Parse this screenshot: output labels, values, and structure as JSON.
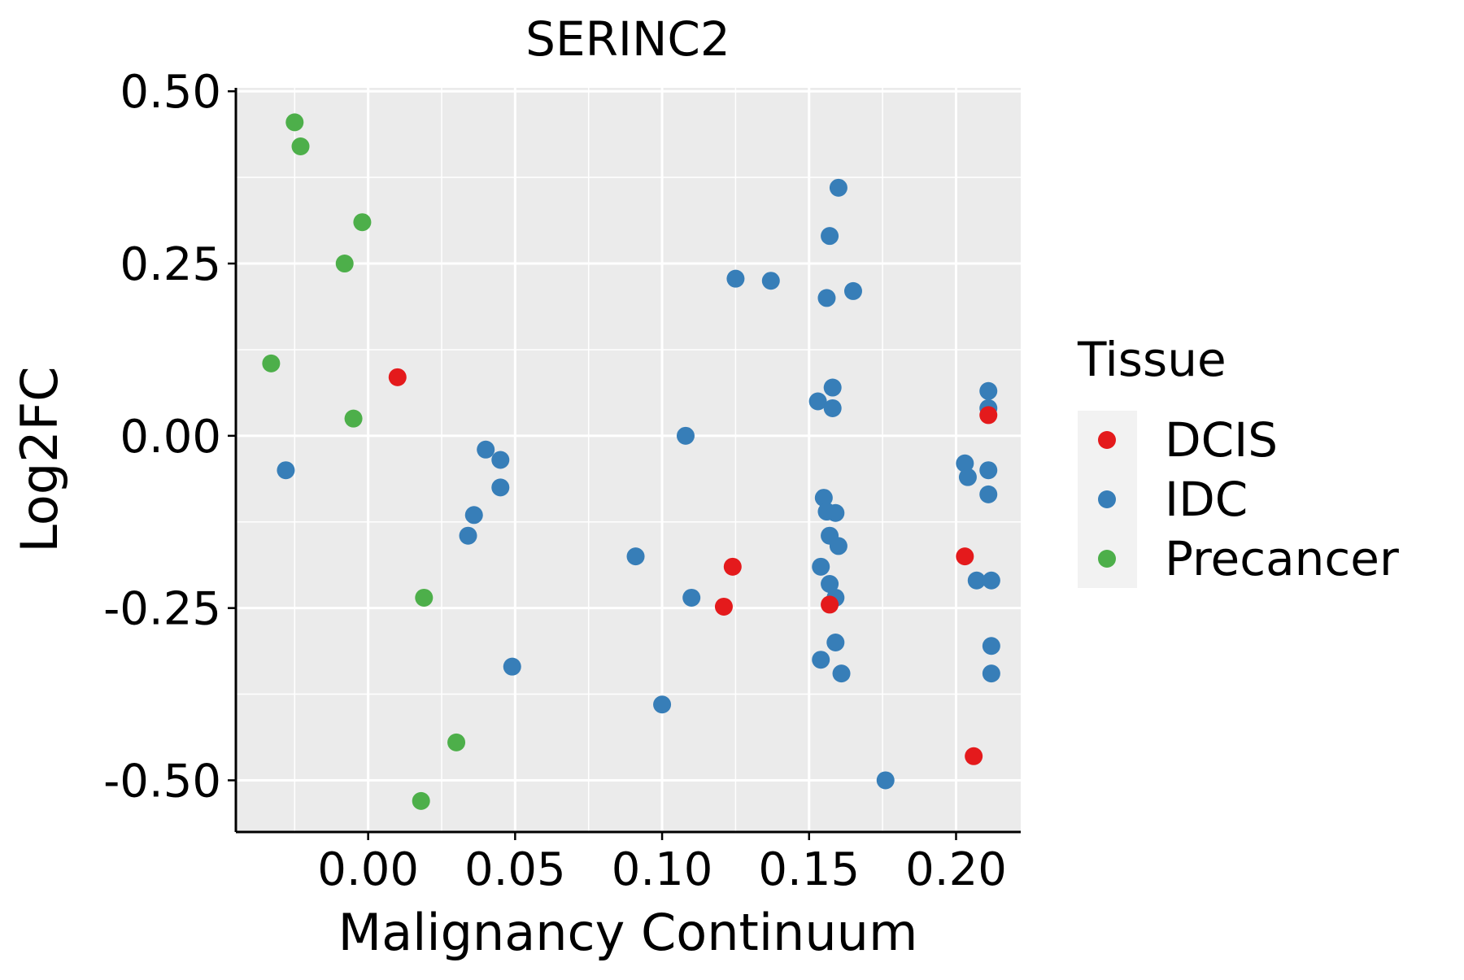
{
  "chart_data": {
    "type": "scatter",
    "title": "SERINC2",
    "xlabel": "Malignancy Continuum",
    "ylabel": "Log2FC",
    "xlim": [
      -0.045,
      0.222
    ],
    "ylim": [
      -0.575,
      0.505
    ],
    "x_ticks": [
      0.0,
      0.05,
      0.1,
      0.15,
      0.2
    ],
    "x_tick_labels": [
      "0.00",
      "0.05",
      "0.10",
      "0.15",
      "0.20"
    ],
    "y_ticks": [
      0.5,
      0.25,
      0.0,
      -0.25,
      -0.5
    ],
    "y_tick_labels": [
      "0.50",
      "0.25",
      "0.00",
      "-0.25",
      "-0.50"
    ],
    "grid": true,
    "legend": {
      "title": "Tissue",
      "position": "right",
      "entries": [
        "DCIS",
        "IDC",
        "Precancer"
      ]
    },
    "colors": {
      "DCIS": "#e41a1c",
      "IDC": "#377eb8",
      "Precancer": "#4daf4a",
      "panel": "#ebebeb",
      "grid": "#ffffff"
    },
    "series": [
      {
        "name": "Precancer",
        "points": [
          {
            "x": -0.025,
            "y": 0.455
          },
          {
            "x": -0.023,
            "y": 0.42
          },
          {
            "x": -0.002,
            "y": 0.31
          },
          {
            "x": -0.008,
            "y": 0.25
          },
          {
            "x": -0.033,
            "y": 0.105
          },
          {
            "x": -0.005,
            "y": 0.025
          },
          {
            "x": 0.019,
            "y": -0.235
          },
          {
            "x": 0.03,
            "y": -0.445
          },
          {
            "x": 0.018,
            "y": -0.53
          }
        ]
      },
      {
        "name": "IDC",
        "points": [
          {
            "x": -0.028,
            "y": -0.05
          },
          {
            "x": 0.04,
            "y": -0.02
          },
          {
            "x": 0.045,
            "y": -0.035
          },
          {
            "x": 0.045,
            "y": -0.075
          },
          {
            "x": 0.036,
            "y": -0.115
          },
          {
            "x": 0.034,
            "y": -0.145
          },
          {
            "x": 0.049,
            "y": -0.335
          },
          {
            "x": 0.091,
            "y": -0.175
          },
          {
            "x": 0.108,
            "y": 0.0
          },
          {
            "x": 0.11,
            "y": -0.235
          },
          {
            "x": 0.1,
            "y": -0.39
          },
          {
            "x": 0.125,
            "y": 0.228
          },
          {
            "x": 0.137,
            "y": 0.225
          },
          {
            "x": 0.16,
            "y": 0.36
          },
          {
            "x": 0.157,
            "y": 0.29
          },
          {
            "x": 0.156,
            "y": 0.2
          },
          {
            "x": 0.165,
            "y": 0.21
          },
          {
            "x": 0.158,
            "y": 0.07
          },
          {
            "x": 0.153,
            "y": 0.05
          },
          {
            "x": 0.158,
            "y": 0.04
          },
          {
            "x": 0.155,
            "y": -0.09
          },
          {
            "x": 0.156,
            "y": -0.11
          },
          {
            "x": 0.159,
            "y": -0.112
          },
          {
            "x": 0.157,
            "y": -0.145
          },
          {
            "x": 0.16,
            "y": -0.16
          },
          {
            "x": 0.154,
            "y": -0.19
          },
          {
            "x": 0.157,
            "y": -0.215
          },
          {
            "x": 0.159,
            "y": -0.235
          },
          {
            "x": 0.159,
            "y": -0.3
          },
          {
            "x": 0.154,
            "y": -0.325
          },
          {
            "x": 0.161,
            "y": -0.345
          },
          {
            "x": 0.176,
            "y": -0.5
          },
          {
            "x": 0.211,
            "y": 0.065
          },
          {
            "x": 0.211,
            "y": 0.04
          },
          {
            "x": 0.203,
            "y": -0.04
          },
          {
            "x": 0.204,
            "y": -0.06
          },
          {
            "x": 0.211,
            "y": -0.05
          },
          {
            "x": 0.211,
            "y": -0.085
          },
          {
            "x": 0.207,
            "y": -0.21
          },
          {
            "x": 0.212,
            "y": -0.21
          },
          {
            "x": 0.212,
            "y": -0.305
          },
          {
            "x": 0.212,
            "y": -0.345
          }
        ]
      },
      {
        "name": "DCIS",
        "points": [
          {
            "x": 0.01,
            "y": 0.085
          },
          {
            "x": 0.124,
            "y": -0.19
          },
          {
            "x": 0.121,
            "y": -0.248
          },
          {
            "x": 0.157,
            "y": -0.245
          },
          {
            "x": 0.211,
            "y": 0.03
          },
          {
            "x": 0.203,
            "y": -0.175
          },
          {
            "x": 0.206,
            "y": -0.465
          }
        ]
      }
    ]
  }
}
